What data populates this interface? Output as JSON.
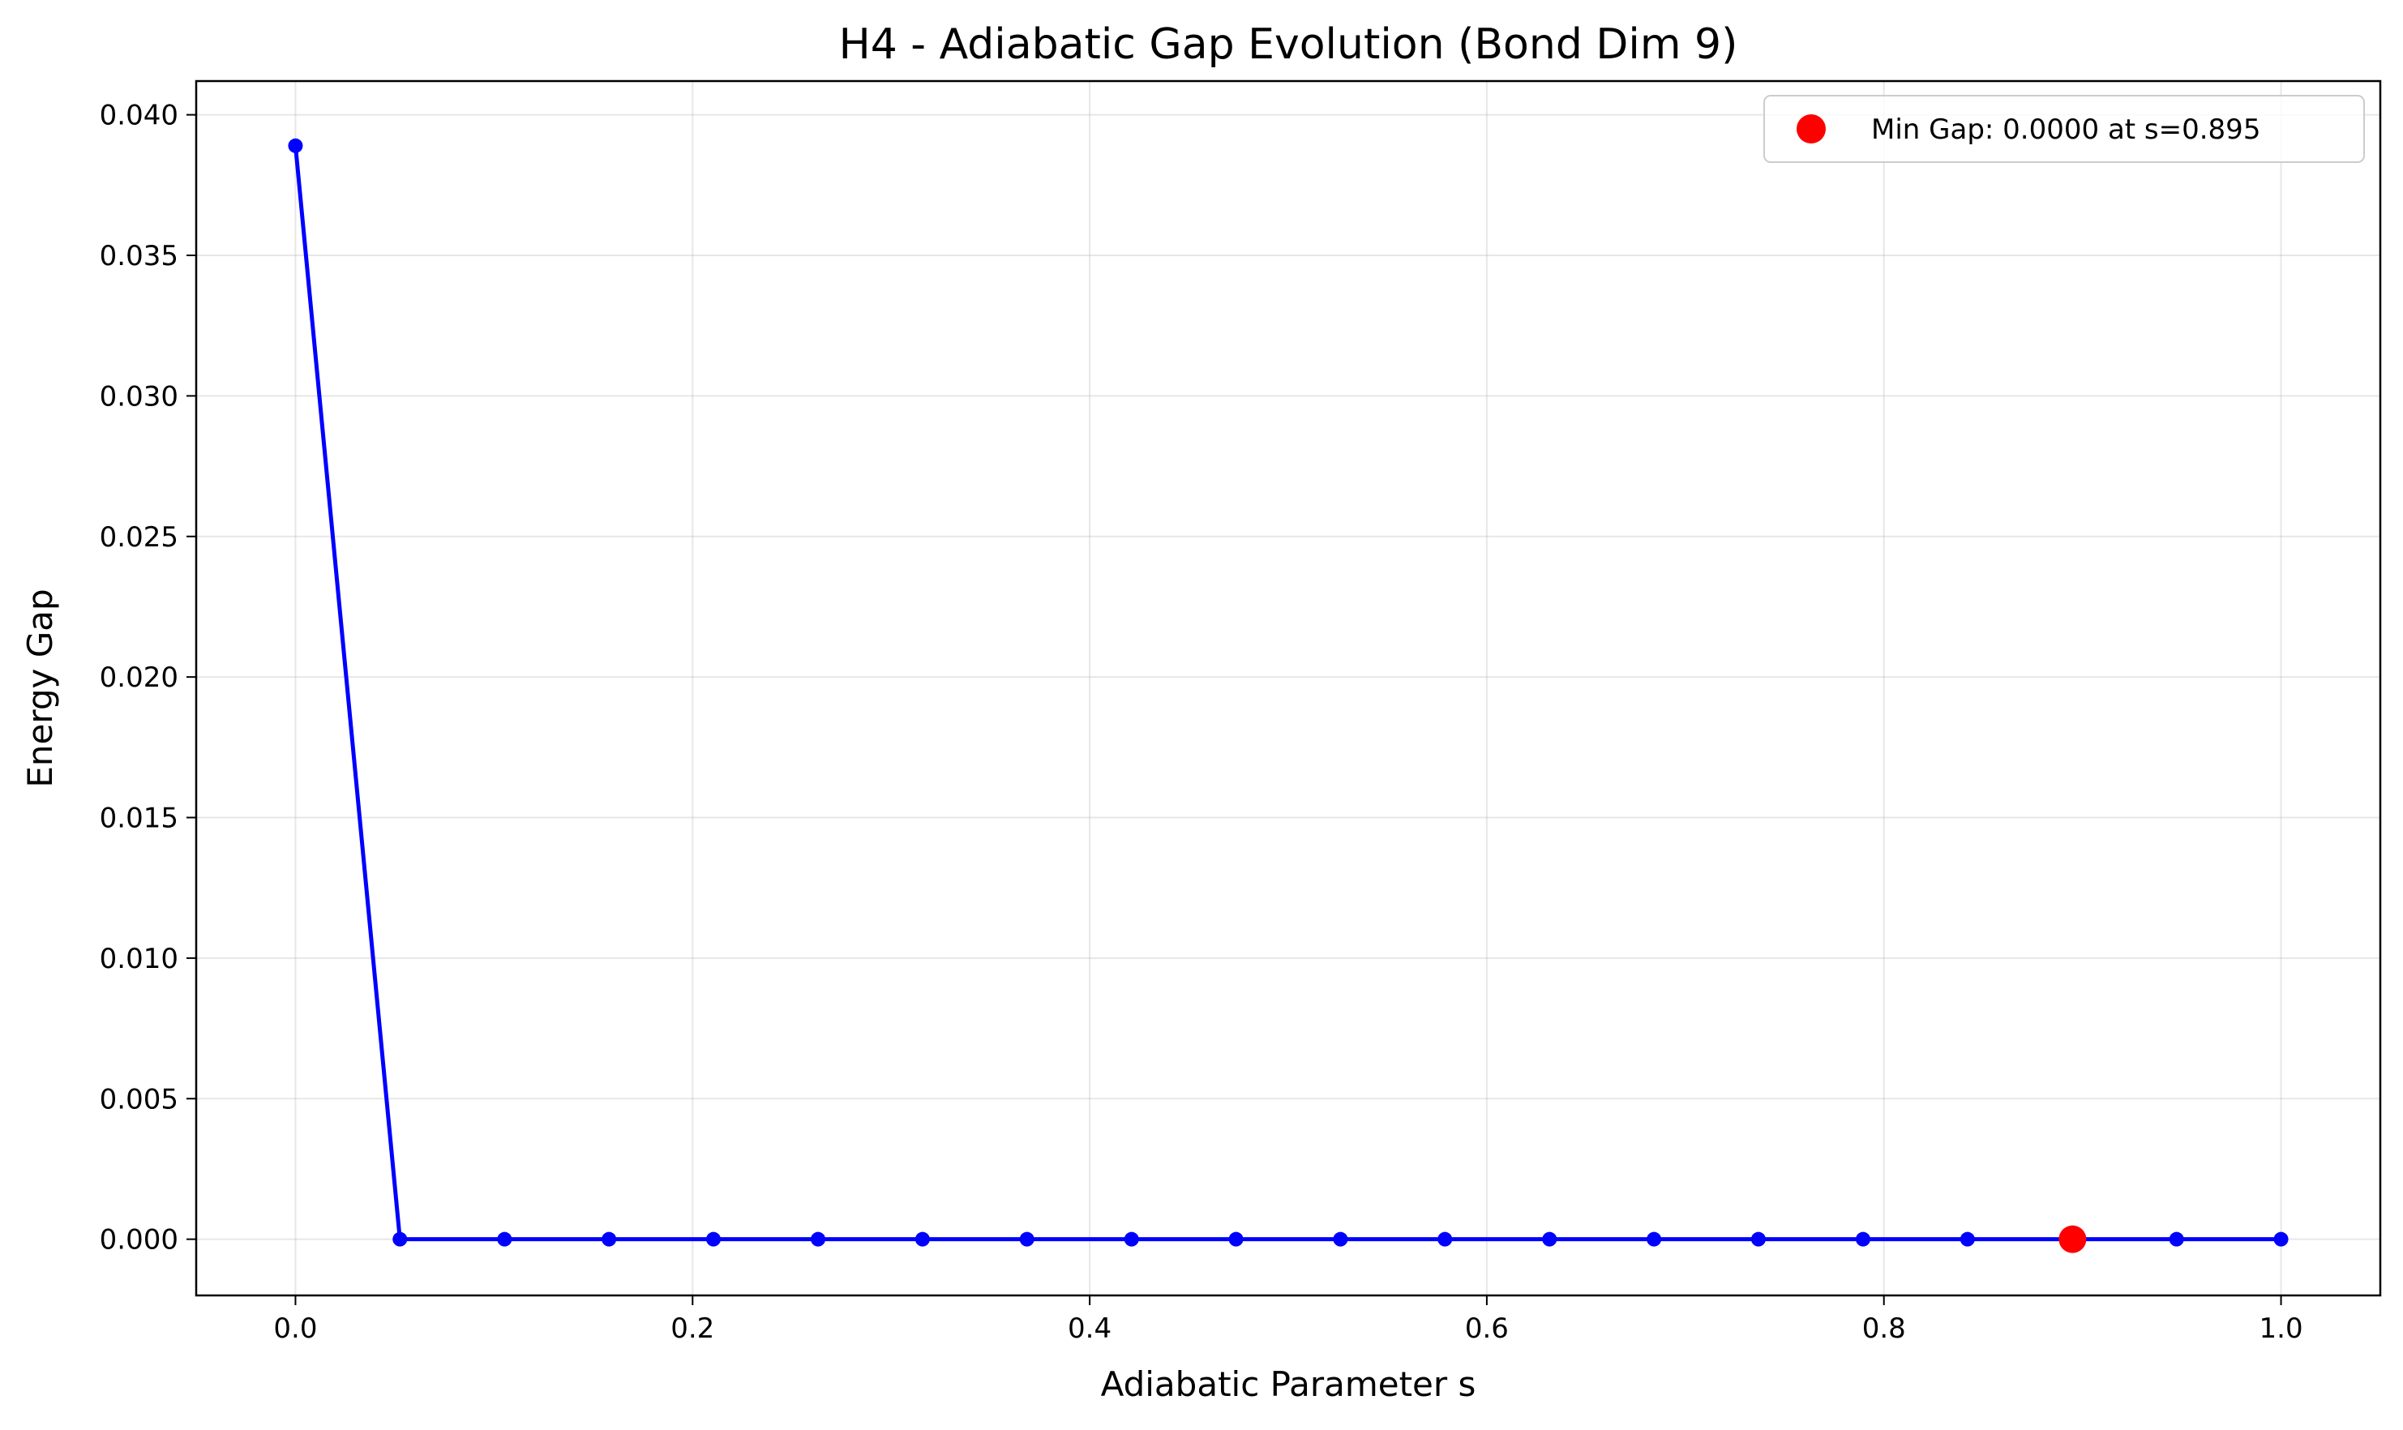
{
  "chart_data": {
    "type": "line",
    "title": "H4 - Adiabatic Gap Evolution (Bond Dim 9)",
    "xlabel": "Adiabatic Parameter s",
    "ylabel": "Energy Gap",
    "xlim": [
      -0.05,
      1.05
    ],
    "ylim": [
      -0.002,
      0.0412
    ],
    "xticks": [
      0.0,
      0.2,
      0.4,
      0.6,
      0.8,
      1.0
    ],
    "xtick_labels": [
      "0.0",
      "0.2",
      "0.4",
      "0.6",
      "0.8",
      "1.0"
    ],
    "yticks": [
      0.0,
      0.005,
      0.01,
      0.015,
      0.02,
      0.025,
      0.03,
      0.035,
      0.04
    ],
    "ytick_labels": [
      "0.000",
      "0.005",
      "0.010",
      "0.015",
      "0.020",
      "0.025",
      "0.030",
      "0.035",
      "0.040"
    ],
    "grid": true,
    "legend_position": "top-right",
    "series": [
      {
        "color": "#0000ff",
        "x": [
          0.0,
          0.0526,
          0.1053,
          0.1579,
          0.2105,
          0.2632,
          0.3158,
          0.3684,
          0.4211,
          0.4737,
          0.5263,
          0.5789,
          0.6316,
          0.6842,
          0.7368,
          0.7895,
          0.8421,
          0.8947,
          0.9474,
          1.0
        ],
        "y": [
          0.0389,
          0.0,
          0.0,
          0.0,
          0.0,
          0.0,
          0.0,
          0.0,
          0.0,
          0.0,
          0.0,
          0.0,
          0.0,
          0.0,
          0.0,
          0.0,
          0.0,
          0.0,
          0.0,
          0.0
        ]
      }
    ],
    "highlight": {
      "name": "Min Gap: 0.0000 at s=0.895",
      "color": "#ff0000",
      "x": 0.895,
      "y": 0.0
    }
  }
}
